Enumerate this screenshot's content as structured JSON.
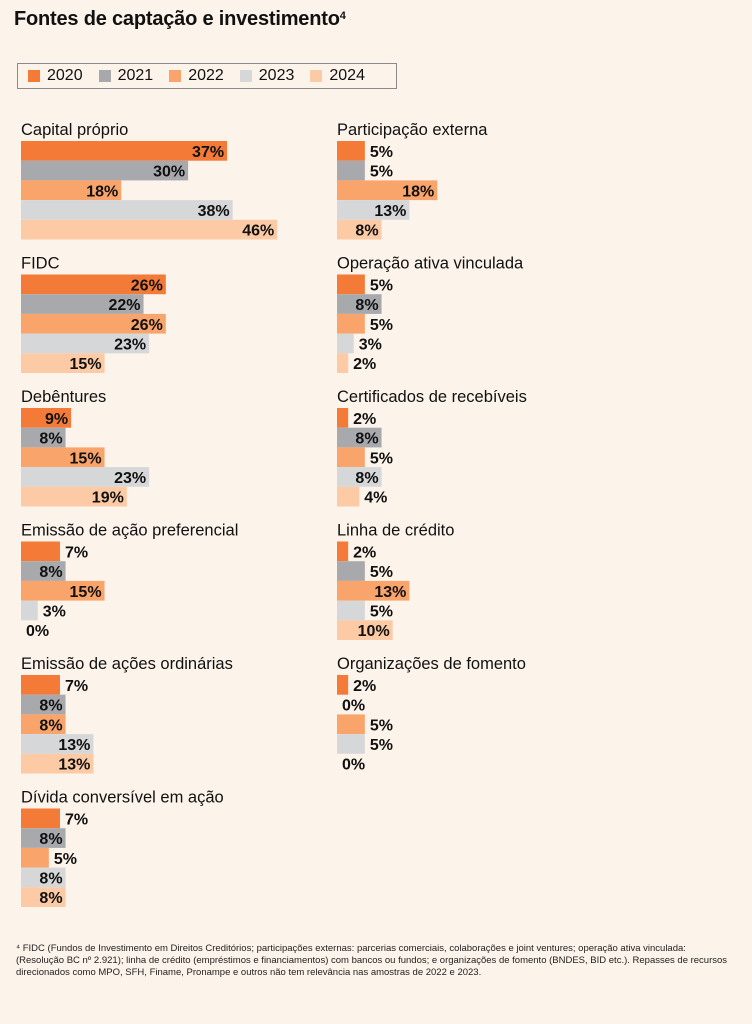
{
  "title": "Fontes de captação e investimento",
  "title_sup": "4",
  "legend": [
    {
      "label": "2020",
      "color": "#f47a37"
    },
    {
      "label": "2021",
      "color": "#a8a9ad"
    },
    {
      "label": "2022",
      "color": "#f9a46b"
    },
    {
      "label": "2023",
      "color": "#d6d7d9"
    },
    {
      "label": "2024",
      "color": "#fccba5"
    }
  ],
  "chart_data": {
    "type": "bar",
    "orientation": "horizontal",
    "series_names": [
      "2020",
      "2021",
      "2022",
      "2023",
      "2024"
    ],
    "value_suffix": "%",
    "categories": [
      {
        "name": "Capital próprio",
        "values": [
          37,
          30,
          18,
          38,
          46
        ]
      },
      {
        "name": "Participação externa",
        "values": [
          5,
          5,
          18,
          13,
          8
        ]
      },
      {
        "name": "FIDC",
        "values": [
          26,
          22,
          26,
          23,
          15
        ]
      },
      {
        "name": "Operação ativa vinculada",
        "values": [
          5,
          8,
          5,
          3,
          2
        ]
      },
      {
        "name": "Debêntures",
        "values": [
          9,
          8,
          15,
          23,
          19
        ]
      },
      {
        "name": "Certificados de recebíveis",
        "values": [
          2,
          8,
          5,
          8,
          4
        ]
      },
      {
        "name": "Emissão de ação preferencial",
        "values": [
          7,
          8,
          15,
          3,
          0
        ]
      },
      {
        "name": "Linha de crédito",
        "values": [
          2,
          5,
          13,
          5,
          10
        ]
      },
      {
        "name": "Emissão de ações ordinárias",
        "values": [
          7,
          8,
          8,
          13,
          13
        ]
      },
      {
        "name": "Organizações de fomento",
        "values": [
          2,
          0,
          5,
          5,
          0
        ]
      },
      {
        "name": "Dívida conversível em ação",
        "values": [
          7,
          8,
          5,
          8,
          8
        ]
      }
    ]
  },
  "footnote": "⁴ FIDC (Fundos de Investimento em Direitos Creditórios; participações externas: parcerias comerciais, colaborações e joint ventures; operação ativa vinculada: (Resolução BC nº 2.921); linha de crédito (empréstimos e financiamentos) com bancos ou fundos; e organizações de fomento (BNDES, BID etc.). Repasses de recursos direcionados como MPO, SFH, Finame, Pronampe e outros não tem relevância nas amostras de 2022 e 2023."
}
